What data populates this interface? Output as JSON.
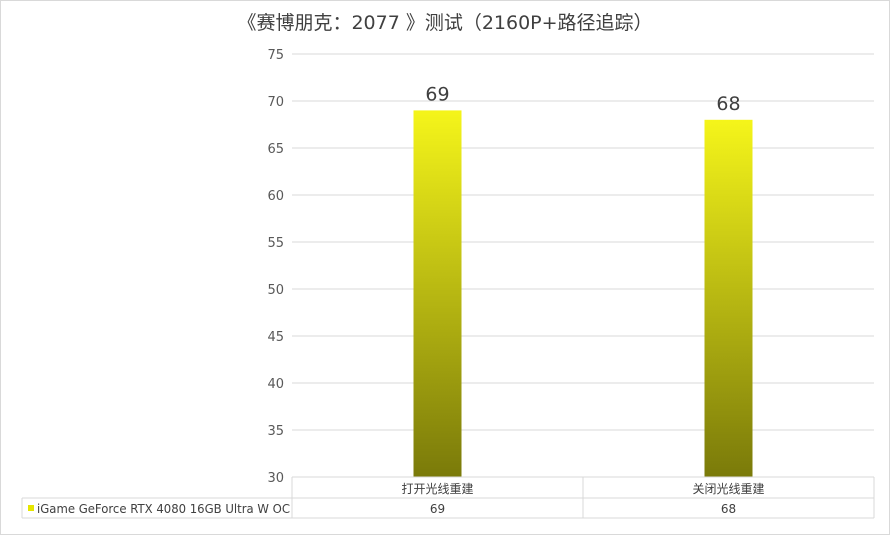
{
  "chart_data": {
    "type": "bar",
    "title": "《赛博朋克：2077 》测试（2160P+路径追踪）",
    "categories": [
      "打开光线重建",
      "关闭光线重建"
    ],
    "series": [
      {
        "name": "iGame GeForce RTX 4080 16GB Ultra W OC",
        "values": [
          69,
          68
        ]
      }
    ],
    "ylim": [
      30,
      75
    ],
    "yticks": [
      30,
      35,
      40,
      45,
      50,
      55,
      60,
      65,
      70,
      75
    ],
    "grid": true,
    "data_table": true,
    "bar_gradient": [
      "#f5f51a",
      "#7a7a0a"
    ],
    "legend_color": "#e6e600"
  }
}
